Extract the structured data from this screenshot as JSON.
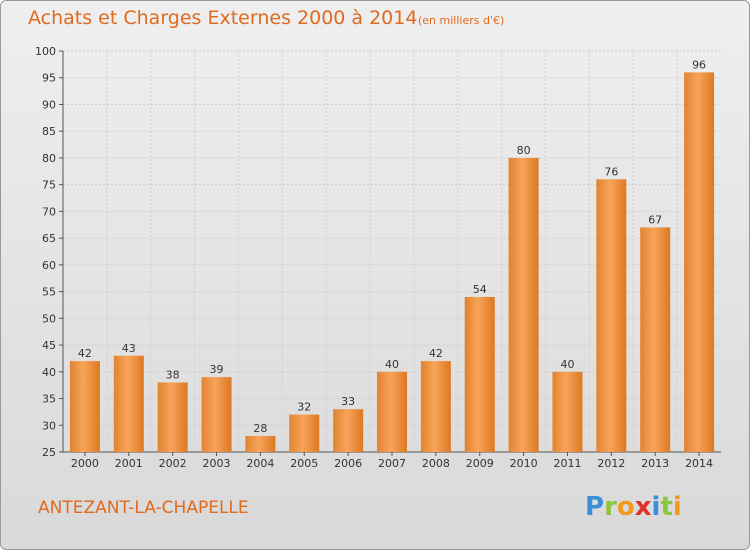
{
  "header": {
    "title": "Achats et Charges Externes 2000 à 2014",
    "unit": "(en milliers d'€)"
  },
  "footer": {
    "commune": "ANTEZANT-LA-CHAPELLE",
    "logo_text": "Proxiti"
  },
  "colors": {
    "accent": "#e06a1f",
    "bar_light": "#f7a45a",
    "bar_dark": "#e07a22",
    "grid": "#cfcfcf"
  },
  "chart_data": {
    "type": "bar",
    "title": "Achats et Charges Externes 2000 à 2014",
    "subtitle": "(en milliers d'€)",
    "xlabel": "",
    "ylabel": "",
    "categories": [
      "2000",
      "2001",
      "2002",
      "2003",
      "2004",
      "2005",
      "2006",
      "2007",
      "2008",
      "2009",
      "2010",
      "2011",
      "2012",
      "2013",
      "2014"
    ],
    "values": [
      42,
      43,
      38,
      39,
      28,
      32,
      33,
      40,
      42,
      54,
      80,
      40,
      76,
      67,
      96
    ],
    "ylim": [
      25,
      100
    ],
    "yticks": [
      25,
      30,
      35,
      40,
      45,
      50,
      55,
      60,
      65,
      70,
      75,
      80,
      85,
      90,
      95,
      100
    ],
    "grid": true,
    "data_labels": true
  }
}
